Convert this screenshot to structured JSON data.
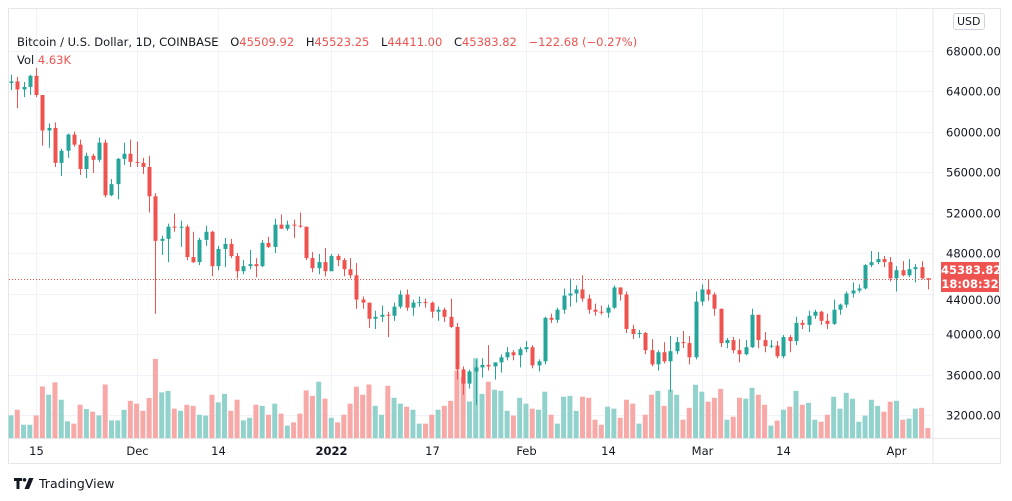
{
  "header": {
    "symbol": "Bitcoin / U.S. Dollar, 1D, COINBASE",
    "open_label": "O",
    "open": "45509.92",
    "high_label": "H",
    "high": "45523.25",
    "low_label": "L",
    "low": "44411.00",
    "close_label": "C",
    "close": "45383.82",
    "change": "−122.68 (−0.27%)",
    "vol_label": "Vol",
    "vol": "4.63K"
  },
  "currency_button": "USD",
  "last_price": {
    "value": "45383.82",
    "countdown": "18:08:32"
  },
  "brand": "TradingView",
  "colors": {
    "up": "#26a69a",
    "down": "#ef5350",
    "up_vol": "#92d2cc",
    "down_vol": "#f7a9a7",
    "grid": "#f0f3fa"
  },
  "chart_data": {
    "type": "candlestick",
    "title": "Bitcoin / U.S. Dollar, 1D, COINBASE",
    "ylim": [
      30500,
      69500
    ],
    "y_ticks": [
      "68000.00",
      "64000.00",
      "60000.00",
      "56000.00",
      "52000.00",
      "48000.00",
      "44000.00",
      "40000.00",
      "36000.00",
      "32000.00"
    ],
    "y_tick_values": [
      68000,
      64000,
      60000,
      56000,
      52000,
      48000,
      44000,
      40000,
      36000,
      32000
    ],
    "x_ticks": [
      {
        "label": "15",
        "index": 4
      },
      {
        "label": "Dec",
        "index": 20
      },
      {
        "label": "14",
        "index": 33
      },
      {
        "label": "2022",
        "index": 51,
        "bold": true
      },
      {
        "label": "17",
        "index": 67
      },
      {
        "label": "Feb",
        "index": 82
      },
      {
        "label": "14",
        "index": 95
      },
      {
        "label": "Mar",
        "index": 110
      },
      {
        "label": "14",
        "index": 123
      },
      {
        "label": "Apr",
        "index": 141
      }
    ],
    "volume_unit": "K",
    "candles_columns": [
      "date",
      "open",
      "high",
      "low",
      "close",
      "volume"
    ],
    "candles": [
      [
        "Nov 11",
        64800,
        65600,
        64100,
        64950,
        10.4
      ],
      [
        "Nov 12",
        64950,
        65400,
        62300,
        64150,
        13.0
      ],
      [
        "Nov 13",
        64150,
        64900,
        63400,
        64400,
        6.1
      ],
      [
        "Nov 14",
        64400,
        65600,
        63600,
        65500,
        6.1
      ],
      [
        "Nov 15",
        65500,
        66300,
        63400,
        63600,
        10.4
      ],
      [
        "Nov 16",
        63600,
        63600,
        58600,
        60100,
        23.7
      ],
      [
        "Nov 17",
        60100,
        60800,
        58400,
        60350,
        19.9
      ],
      [
        "Nov 18",
        60350,
        60900,
        56500,
        56900,
        25.6
      ],
      [
        "Nov 19",
        56900,
        58300,
        55600,
        58100,
        17.6
      ],
      [
        "Nov 20",
        58100,
        59800,
        57400,
        59700,
        7.7
      ],
      [
        "Nov 21",
        59700,
        60000,
        58500,
        58700,
        6.6
      ],
      [
        "Nov 22",
        58700,
        59200,
        55700,
        56300,
        15.3
      ],
      [
        "Nov 23",
        56300,
        57900,
        55400,
        57600,
        13.3
      ],
      [
        "Nov 24",
        57600,
        57800,
        55900,
        57200,
        12.1
      ],
      [
        "Nov 25",
        57200,
        59400,
        57000,
        58900,
        10.4
      ],
      [
        "Nov 26",
        58900,
        59200,
        53500,
        53700,
        24.6
      ],
      [
        "Nov 27",
        53700,
        55300,
        53600,
        54800,
        8.1
      ],
      [
        "Nov 28",
        54800,
        57400,
        53300,
        57300,
        8.1
      ],
      [
        "Nov 29",
        57300,
        58900,
        56700,
        57800,
        13.0
      ],
      [
        "Nov 30",
        57800,
        59200,
        56500,
        57000,
        17.1
      ],
      [
        "Dec 1",
        57000,
        59000,
        56500,
        56900,
        15.8
      ],
      [
        "Dec 2",
        56900,
        57400,
        55800,
        56500,
        12.5
      ],
      [
        "Dec 3",
        56500,
        57600,
        52000,
        53600,
        18.4
      ],
      [
        "Dec 4",
        53600,
        53900,
        42000,
        49200,
        36.4
      ],
      [
        "Dec 5",
        49200,
        49700,
        47800,
        49400,
        21.0
      ],
      [
        "Dec 6",
        49400,
        50900,
        47100,
        50600,
        21.7
      ],
      [
        "Dec 7",
        50600,
        51900,
        50100,
        50500,
        13.5
      ],
      [
        "Dec 8",
        50500,
        51200,
        48600,
        50600,
        12.5
      ],
      [
        "Dec 9",
        50600,
        50800,
        47300,
        47600,
        15.3
      ],
      [
        "Dec 10",
        47600,
        50100,
        47000,
        47100,
        14.8
      ],
      [
        "Dec 11",
        47100,
        49500,
        46800,
        49300,
        10.7
      ],
      [
        "Dec 12",
        49300,
        50700,
        48700,
        50100,
        10.3
      ],
      [
        "Dec 13",
        50100,
        50200,
        45700,
        46700,
        19.9
      ],
      [
        "Dec 14",
        46700,
        48700,
        46300,
        48400,
        16.4
      ],
      [
        "Dec 15",
        48400,
        49500,
        46600,
        48900,
        20.3
      ],
      [
        "Dec 16",
        48900,
        49400,
        47500,
        47700,
        12.5
      ],
      [
        "Dec 17",
        47700,
        48000,
        45500,
        46200,
        17.6
      ],
      [
        "Dec 18",
        46200,
        47300,
        45900,
        46700,
        8.1
      ],
      [
        "Dec 19",
        46700,
        48300,
        46400,
        46900,
        9.3
      ],
      [
        "Dec 20",
        46900,
        47500,
        45600,
        46700,
        15.3
      ],
      [
        "Dec 21",
        46700,
        49300,
        46600,
        49000,
        14.8
      ],
      [
        "Dec 22",
        49000,
        49600,
        48500,
        48600,
        10.7
      ],
      [
        "Dec 23",
        48600,
        51400,
        48000,
        50800,
        15.8
      ],
      [
        "Dec 24",
        50800,
        51800,
        50400,
        50400,
        11.2
      ],
      [
        "Dec 25",
        50400,
        51200,
        50200,
        50800,
        5.7
      ],
      [
        "Dec 26",
        50800,
        51300,
        49500,
        50700,
        7.2
      ],
      [
        "Dec 27",
        50700,
        52000,
        50500,
        50600,
        11.2
      ],
      [
        "Dec 28",
        50600,
        50600,
        47300,
        47500,
        21.9
      ],
      [
        "Dec 29",
        47500,
        48100,
        46100,
        46500,
        19.4
      ],
      [
        "Dec 30",
        46500,
        47900,
        45900,
        47100,
        25.9
      ],
      [
        "Dec 31",
        47100,
        48500,
        45700,
        46200,
        18.1
      ],
      [
        "Jan 1",
        46200,
        47900,
        46200,
        47700,
        9.3
      ],
      [
        "Jan 2",
        47700,
        47900,
        46700,
        47300,
        7.2
      ],
      [
        "Jan 3",
        47300,
        47500,
        45700,
        46400,
        10.7
      ],
      [
        "Jan 4",
        46400,
        47500,
        45500,
        45800,
        15.8
      ],
      [
        "Jan 5",
        45800,
        47000,
        42500,
        43400,
        23.6
      ],
      [
        "Jan 6",
        43400,
        43700,
        42500,
        43100,
        19.9
      ],
      [
        "Jan 7",
        43100,
        43100,
        40600,
        41500,
        24.6
      ],
      [
        "Jan 8",
        41500,
        42300,
        40500,
        41700,
        14.8
      ],
      [
        "Jan 9",
        41700,
        42800,
        41200,
        41900,
        10.7
      ],
      [
        "Jan 10",
        41900,
        42200,
        39700,
        41800,
        24.0
      ],
      [
        "Jan 11",
        41800,
        43100,
        41300,
        42700,
        18.5
      ],
      [
        "Jan 12",
        42700,
        44300,
        42500,
        43900,
        15.8
      ],
      [
        "Jan 13",
        43900,
        44400,
        42300,
        42600,
        14.4
      ],
      [
        "Jan 14",
        42600,
        43400,
        41800,
        43100,
        13.0
      ],
      [
        "Jan 15",
        43100,
        43700,
        42700,
        43150,
        6.6
      ],
      [
        "Jan 16",
        43150,
        43500,
        42600,
        43100,
        6.6
      ],
      [
        "Jan 17",
        43100,
        43200,
        41600,
        42200,
        10.7
      ],
      [
        "Jan 18",
        42200,
        42700,
        41300,
        42400,
        13.0
      ],
      [
        "Jan 19",
        42400,
        42600,
        41200,
        41700,
        14.8
      ],
      [
        "Jan 20",
        41700,
        43500,
        40600,
        40700,
        17.1
      ],
      [
        "Jan 21",
        40700,
        41100,
        35500,
        36500,
        31.0
      ],
      [
        "Jan 22",
        36500,
        36800,
        34000,
        35100,
        28.0
      ],
      [
        "Jan 23",
        35100,
        36500,
        34600,
        36300,
        16.8
      ],
      [
        "Jan 24",
        36300,
        37500,
        33000,
        36700,
        36.7
      ],
      [
        "Jan 25",
        36700,
        37600,
        35700,
        36950,
        20.3
      ],
      [
        "Jan 26",
        36950,
        38900,
        36400,
        36800,
        25.9
      ],
      [
        "Jan 27",
        36800,
        37200,
        35500,
        37200,
        22.2
      ],
      [
        "Jan 28",
        37200,
        38000,
        36200,
        37700,
        21.7
      ],
      [
        "Jan 29",
        37700,
        38700,
        37400,
        38200,
        12.5
      ],
      [
        "Jan 30",
        38200,
        38400,
        37400,
        37900,
        10.3
      ],
      [
        "Jan 31",
        37900,
        38700,
        36700,
        38500,
        18.5
      ],
      [
        "Feb 1",
        38500,
        39300,
        38200,
        38700,
        15.8
      ],
      [
        "Feb 2",
        38700,
        38900,
        36600,
        36900,
        13.5
      ],
      [
        "Feb 3",
        36900,
        37500,
        36300,
        37300,
        13.0
      ],
      [
        "Feb 4",
        37300,
        41700,
        37000,
        41600,
        21.3
      ],
      [
        "Feb 5",
        41600,
        42000,
        41100,
        41400,
        10.7
      ],
      [
        "Feb 6",
        41400,
        42600,
        41100,
        42400,
        6.6
      ],
      [
        "Feb 7",
        42400,
        44500,
        42000,
        43800,
        19.0
      ],
      [
        "Feb 8",
        43800,
        45500,
        42700,
        44000,
        19.4
      ],
      [
        "Feb 9",
        44000,
        44800,
        43100,
        44400,
        12.5
      ],
      [
        "Feb 10",
        44400,
        45800,
        43200,
        43500,
        19.0
      ],
      [
        "Feb 11",
        43500,
        43900,
        42000,
        42400,
        18.5
      ],
      [
        "Feb 12",
        42400,
        43000,
        41800,
        42200,
        8.4
      ],
      [
        "Feb 13",
        42200,
        42800,
        41900,
        42100,
        6.1
      ],
      [
        "Feb 14",
        42100,
        42900,
        41600,
        42600,
        14.4
      ],
      [
        "Feb 15",
        42600,
        44800,
        42500,
        44600,
        13.5
      ],
      [
        "Feb 16",
        44600,
        44600,
        43300,
        43900,
        9.3
      ],
      [
        "Feb 17",
        43900,
        44200,
        40100,
        40500,
        17.6
      ],
      [
        "Feb 18",
        40500,
        40900,
        39500,
        40000,
        15.8
      ],
      [
        "Feb 19",
        40000,
        40400,
        39600,
        40100,
        6.6
      ],
      [
        "Feb 20",
        40100,
        40200,
        38000,
        38400,
        10.7
      ],
      [
        "Feb 21",
        38400,
        39500,
        36800,
        37000,
        19.9
      ],
      [
        "Feb 22",
        37000,
        38400,
        36400,
        38200,
        21.7
      ],
      [
        "Feb 23",
        38200,
        39200,
        37100,
        37300,
        14.8
      ],
      [
        "Feb 24",
        37300,
        39800,
        34300,
        38300,
        22.2
      ],
      [
        "Feb 25",
        38300,
        39700,
        38000,
        39200,
        19.9
      ],
      [
        "Feb 26",
        39200,
        40300,
        38600,
        39100,
        8.4
      ],
      [
        "Feb 27",
        39100,
        39800,
        37000,
        37700,
        13.9
      ],
      [
        "Feb 28",
        37700,
        44200,
        37500,
        43200,
        24.5
      ],
      [
        "Mar 1",
        43200,
        44900,
        42800,
        44400,
        21.3
      ],
      [
        "Mar 2",
        44400,
        45400,
        43300,
        43900,
        16.7
      ],
      [
        "Mar 3",
        43900,
        44100,
        41800,
        42500,
        18.5
      ],
      [
        "Mar 4",
        42500,
        42500,
        38700,
        39100,
        22.6
      ],
      [
        "Mar 5",
        39100,
        39600,
        38600,
        39400,
        8.4
      ],
      [
        "Mar 6",
        39400,
        39700,
        38100,
        38400,
        9.8
      ],
      [
        "Mar 7",
        38400,
        39500,
        37200,
        38000,
        18.5
      ],
      [
        "Mar 8",
        38000,
        39400,
        37900,
        38700,
        18.1
      ],
      [
        "Mar 9",
        38700,
        42500,
        38600,
        41900,
        23.1
      ],
      [
        "Mar 10",
        41900,
        41900,
        38600,
        39400,
        19.9
      ],
      [
        "Mar 11",
        39400,
        40200,
        38200,
        38800,
        15.3
      ],
      [
        "Mar 12",
        38800,
        39400,
        38600,
        38850,
        5.7
      ],
      [
        "Mar 13",
        38850,
        39300,
        37600,
        37800,
        8.0
      ],
      [
        "Mar 14",
        37800,
        39900,
        37600,
        39700,
        13.0
      ],
      [
        "Mar 15",
        39700,
        39900,
        38200,
        39300,
        14.4
      ],
      [
        "Mar 16",
        39300,
        41700,
        38900,
        41100,
        21.7
      ],
      [
        "Mar 17",
        41100,
        41400,
        40500,
        40900,
        15.3
      ],
      [
        "Mar 18",
        40900,
        42300,
        40200,
        41800,
        16.2
      ],
      [
        "Mar 19",
        41800,
        42400,
        41500,
        42200,
        8.4
      ],
      [
        "Mar 20",
        42200,
        42300,
        40900,
        41300,
        7.5
      ],
      [
        "Mar 21",
        41300,
        42000,
        40500,
        41000,
        10.7
      ],
      [
        "Mar 22",
        41000,
        43400,
        40900,
        42400,
        19.0
      ],
      [
        "Mar 23",
        42400,
        43000,
        41900,
        42900,
        13.5
      ],
      [
        "Mar 24",
        42900,
        44200,
        42600,
        44000,
        20.8
      ],
      [
        "Mar 25",
        44000,
        45100,
        43600,
        44300,
        18.1
      ],
      [
        "Mar 26",
        44300,
        44900,
        44100,
        44500,
        7.5
      ],
      [
        "Mar 27",
        44500,
        46900,
        44400,
        46800,
        10.3
      ],
      [
        "Mar 28",
        46800,
        48200,
        46600,
        47100,
        17.6
      ],
      [
        "Mar 29",
        47100,
        48100,
        46900,
        47400,
        14.8
      ],
      [
        "Mar 30",
        47400,
        47700,
        46600,
        47100,
        12.1
      ],
      [
        "Mar 31",
        47100,
        47600,
        45200,
        45500,
        16.7
      ],
      [
        "Apr 1",
        45500,
        46700,
        44200,
        46300,
        17.1
      ],
      [
        "Apr 2",
        46300,
        47200,
        45700,
        45800,
        8.4
      ],
      [
        "Apr 3",
        45800,
        47400,
        45600,
        46400,
        8.9
      ],
      [
        "Apr 4",
        46400,
        46900,
        45100,
        46600,
        13.5
      ],
      [
        "Apr 5",
        46600,
        47200,
        45400,
        45510,
        13.9
      ],
      [
        "Apr 6",
        45509.92,
        45523.25,
        44411.0,
        45383.82,
        4.63
      ]
    ]
  }
}
